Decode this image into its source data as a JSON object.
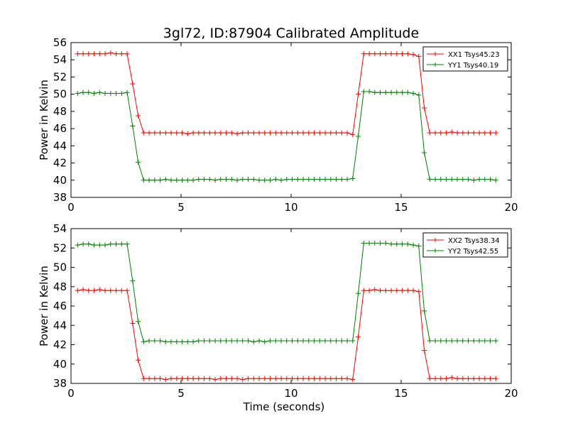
{
  "title": "3gl72, ID:87904 Calibrated Amplitude",
  "chart_data": [
    {
      "type": "line",
      "ylabel": "Power in Kelvin",
      "xlabel": "",
      "xlim": [
        0,
        20
      ],
      "ylim": [
        38,
        56
      ],
      "xticks": [
        0,
        5,
        10,
        15,
        20
      ],
      "yticks": [
        38,
        40,
        42,
        44,
        46,
        48,
        50,
        52,
        54,
        56
      ],
      "legend": "top-right",
      "x": [
        0.3,
        0.55,
        0.8,
        1.05,
        1.3,
        1.55,
        1.8,
        2.05,
        2.3,
        2.55,
        2.8,
        3.05,
        3.3,
        3.55,
        3.8,
        4.05,
        4.3,
        4.55,
        4.8,
        5.05,
        5.3,
        5.55,
        5.8,
        6.05,
        6.3,
        6.55,
        6.8,
        7.05,
        7.3,
        7.55,
        7.8,
        8.05,
        8.3,
        8.55,
        8.8,
        9.05,
        9.3,
        9.55,
        9.8,
        10.05,
        10.3,
        10.55,
        10.8,
        11.05,
        11.3,
        11.55,
        11.8,
        12.05,
        12.3,
        12.55,
        12.8,
        13.05,
        13.3,
        13.55,
        13.8,
        14.05,
        14.3,
        14.55,
        14.8,
        15.05,
        15.3,
        15.55,
        15.8,
        16.05,
        16.3,
        16.55,
        16.8,
        17.05,
        17.3,
        17.55,
        17.8,
        18.05,
        18.3,
        18.55,
        18.8,
        19.05,
        19.3
      ],
      "series": [
        {
          "name": "XX1 Tsys45.23",
          "color": "#ff0000",
          "values": [
            54.7,
            54.7,
            54.7,
            54.7,
            54.7,
            54.7,
            54.8,
            54.7,
            54.7,
            54.7,
            51.2,
            47.5,
            45.5,
            45.5,
            45.5,
            45.5,
            45.5,
            45.5,
            45.5,
            45.5,
            45.4,
            45.5,
            45.5,
            45.5,
            45.5,
            45.5,
            45.5,
            45.5,
            45.5,
            45.4,
            45.5,
            45.5,
            45.5,
            45.5,
            45.5,
            45.5,
            45.5,
            45.5,
            45.5,
            45.5,
            45.5,
            45.5,
            45.5,
            45.5,
            45.5,
            45.5,
            45.5,
            45.5,
            45.5,
            45.5,
            45.3,
            50.0,
            54.7,
            54.7,
            54.7,
            54.7,
            54.7,
            54.7,
            54.7,
            54.7,
            54.7,
            54.6,
            54.4,
            48.4,
            45.5,
            45.5,
            45.5,
            45.5,
            45.6,
            45.5,
            45.5,
            45.5,
            45.5,
            45.5,
            45.5,
            45.5,
            45.5
          ]
        },
        {
          "name": "YY1 Tsys40.19",
          "color": "#008000",
          "values": [
            50.1,
            50.2,
            50.2,
            50.1,
            50.2,
            50.1,
            50.1,
            50.1,
            50.1,
            50.2,
            46.3,
            42.1,
            40.0,
            40.0,
            40.0,
            40.0,
            40.1,
            40.0,
            40.0,
            40.0,
            40.0,
            40.0,
            40.1,
            40.1,
            40.1,
            40.0,
            40.1,
            40.1,
            40.1,
            40.0,
            40.1,
            40.1,
            40.1,
            40.0,
            40.0,
            40.0,
            40.1,
            40.0,
            40.1,
            40.1,
            40.1,
            40.1,
            40.1,
            40.1,
            40.1,
            40.1,
            40.1,
            40.1,
            40.1,
            40.1,
            40.2,
            45.1,
            50.3,
            50.3,
            50.2,
            50.2,
            50.2,
            50.2,
            50.2,
            50.2,
            50.2,
            50.1,
            49.9,
            43.2,
            40.1,
            40.1,
            40.1,
            40.1,
            40.1,
            40.1,
            40.1,
            40.1,
            40.0,
            40.1,
            40.1,
            40.1,
            40.0
          ]
        }
      ]
    },
    {
      "type": "line",
      "ylabel": "Power in Kelvin",
      "xlabel": "Time (seconds)",
      "xlim": [
        0,
        20
      ],
      "ylim": [
        38,
        54
      ],
      "xticks": [
        0,
        5,
        10,
        15,
        20
      ],
      "yticks": [
        38,
        40,
        42,
        44,
        46,
        48,
        50,
        52,
        54
      ],
      "legend": "top-right",
      "x": [
        0.3,
        0.55,
        0.8,
        1.05,
        1.3,
        1.55,
        1.8,
        2.05,
        2.3,
        2.55,
        2.8,
        3.05,
        3.3,
        3.55,
        3.8,
        4.05,
        4.3,
        4.55,
        4.8,
        5.05,
        5.3,
        5.55,
        5.8,
        6.05,
        6.3,
        6.55,
        6.8,
        7.05,
        7.3,
        7.55,
        7.8,
        8.05,
        8.3,
        8.55,
        8.8,
        9.05,
        9.3,
        9.55,
        9.8,
        10.05,
        10.3,
        10.55,
        10.8,
        11.05,
        11.3,
        11.55,
        11.8,
        12.05,
        12.3,
        12.55,
        12.8,
        13.05,
        13.3,
        13.55,
        13.8,
        14.05,
        14.3,
        14.55,
        14.8,
        15.05,
        15.3,
        15.55,
        15.8,
        16.05,
        16.3,
        16.55,
        16.8,
        17.05,
        17.3,
        17.55,
        17.8,
        18.05,
        18.3,
        18.55,
        18.8,
        19.05,
        19.3
      ],
      "series": [
        {
          "name": "XX2 Tsys38.34",
          "color": "#ff0000",
          "values": [
            47.6,
            47.7,
            47.6,
            47.6,
            47.7,
            47.6,
            47.6,
            47.6,
            47.6,
            47.6,
            44.2,
            40.4,
            38.5,
            38.5,
            38.5,
            38.5,
            38.4,
            38.5,
            38.5,
            38.5,
            38.5,
            38.5,
            38.5,
            38.5,
            38.5,
            38.4,
            38.5,
            38.5,
            38.5,
            38.5,
            38.4,
            38.5,
            38.5,
            38.5,
            38.5,
            38.5,
            38.5,
            38.5,
            38.5,
            38.5,
            38.5,
            38.5,
            38.5,
            38.5,
            38.5,
            38.5,
            38.5,
            38.5,
            38.5,
            38.5,
            38.4,
            42.8,
            47.6,
            47.6,
            47.7,
            47.6,
            47.6,
            47.6,
            47.6,
            47.6,
            47.6,
            47.6,
            47.5,
            41.4,
            38.5,
            38.5,
            38.5,
            38.5,
            38.6,
            38.5,
            38.5,
            38.5,
            38.5,
            38.5,
            38.5,
            38.5,
            38.5
          ]
        },
        {
          "name": "YY2 Tsys42.55",
          "color": "#008000",
          "values": [
            52.3,
            52.4,
            52.4,
            52.3,
            52.3,
            52.3,
            52.4,
            52.4,
            52.4,
            52.4,
            48.6,
            44.4,
            42.3,
            42.4,
            42.4,
            42.4,
            42.3,
            42.3,
            42.3,
            42.3,
            42.3,
            42.3,
            42.4,
            42.4,
            42.4,
            42.4,
            42.4,
            42.4,
            42.4,
            42.4,
            42.4,
            42.4,
            42.3,
            42.4,
            42.3,
            42.4,
            42.4,
            42.4,
            42.4,
            42.4,
            42.4,
            42.4,
            42.4,
            42.4,
            42.4,
            42.4,
            42.4,
            42.4,
            42.4,
            42.4,
            42.4,
            47.3,
            52.5,
            52.5,
            52.5,
            52.5,
            52.5,
            52.4,
            52.4,
            52.4,
            52.4,
            52.3,
            52.2,
            45.5,
            42.4,
            42.4,
            42.4,
            42.4,
            42.4,
            42.4,
            42.4,
            42.4,
            42.4,
            42.4,
            42.4,
            42.4,
            42.4
          ]
        }
      ]
    }
  ]
}
